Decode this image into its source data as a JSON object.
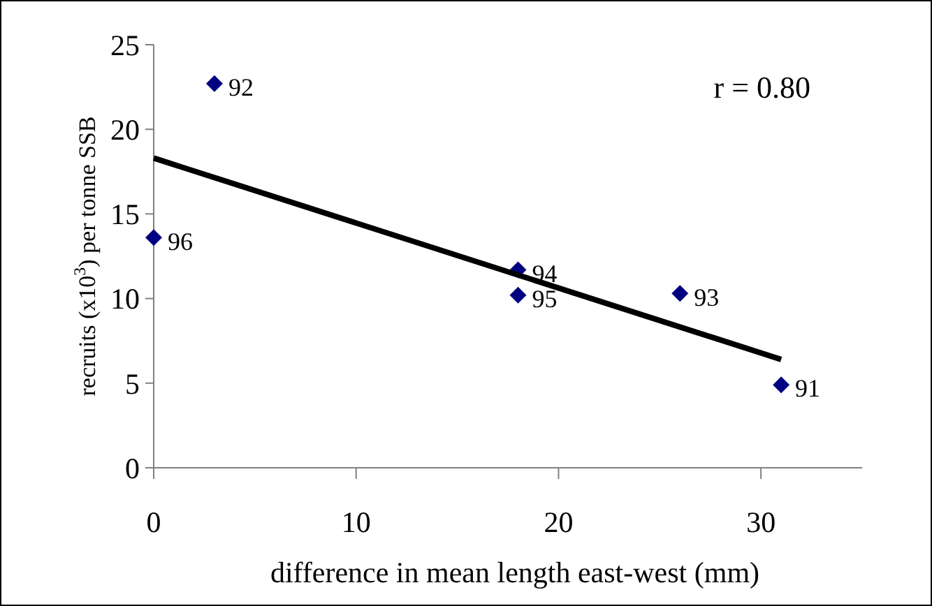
{
  "chart_data": {
    "type": "scatter",
    "xlabel": "difference in mean length east-west (mm)",
    "ylabel": "recruits (x10$^{3}$) per tonne SSB",
    "xlim": [
      0,
      35
    ],
    "xticks": [
      0,
      10,
      20,
      30
    ],
    "ylim": [
      0,
      25
    ],
    "yticks": [
      0,
      5,
      10,
      15,
      20,
      25
    ],
    "series": [
      {
        "color": "#000080",
        "marker": "diamond",
        "x": [
          3,
          0,
          18,
          18,
          26,
          31
        ],
        "values": [
          22.7,
          13.6,
          11.7,
          10.2,
          10.3,
          4.9
        ]
      },
      {
        "type": "line",
        "color": "#000000",
        "marker": "none",
        "x": [
          0,
          31
        ],
        "values": [
          18.3,
          6.4
        ]
      }
    ],
    "annotations": [
      "r = 0.80",
      {
        "text": "92",
        "x": 3,
        "y": 22.7
      },
      {
        "text": "96",
        "x": 0,
        "y": 13.6
      },
      {
        "text": "94",
        "x": 18,
        "y": 11.7
      },
      {
        "text": "95",
        "x": 18,
        "y": 10.2
      },
      {
        "text": "93",
        "x": 26,
        "y": 10.3
      },
      {
        "text": "91",
        "x": 31,
        "y": 4.9
      }
    ]
  }
}
